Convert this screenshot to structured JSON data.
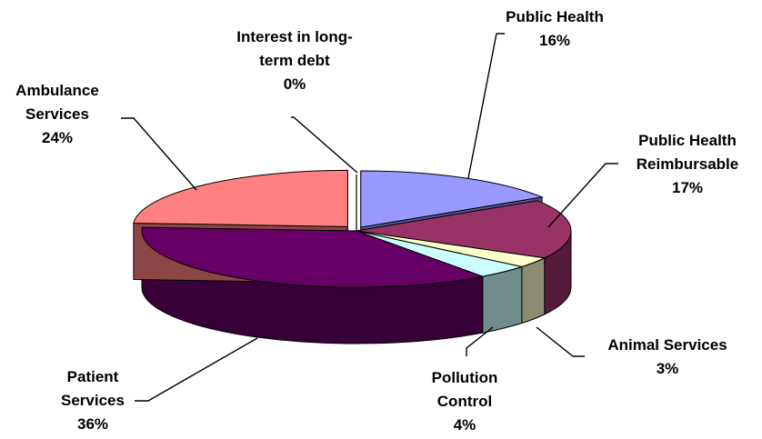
{
  "chart_data": {
    "type": "pie",
    "title": "",
    "three_d": true,
    "legend": "none",
    "slices": [
      {
        "label_lines": [
          "Public Health"
        ],
        "pct_label": "16%",
        "value": 16,
        "color": "#9999ff"
      },
      {
        "label_lines": [
          "Public Health",
          "Reimbursable"
        ],
        "pct_label": "17%",
        "value": 17,
        "color": "#993366"
      },
      {
        "label_lines": [
          "Animal Services"
        ],
        "pct_label": "3%",
        "value": 3,
        "color": "#ffffcc"
      },
      {
        "label_lines": [
          "Pollution",
          "Control"
        ],
        "pct_label": "4%",
        "value": 4,
        "color": "#ccffff"
      },
      {
        "label_lines": [
          "Patient",
          "Services"
        ],
        "pct_label": "36%",
        "value": 36,
        "color": "#660066"
      },
      {
        "label_lines": [
          "Ambulance",
          "Services"
        ],
        "pct_label": "24%",
        "value": 24,
        "color": "#ff8080"
      },
      {
        "label_lines": [
          "Interest in long-",
          "term debt"
        ],
        "pct_label": "0%",
        "value": 0,
        "color": "#0066cc"
      }
    ]
  }
}
